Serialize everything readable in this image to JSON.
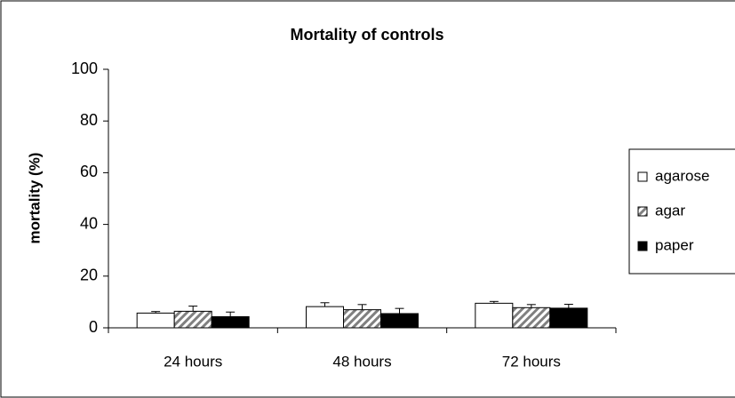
{
  "chart_data": {
    "type": "bar",
    "title": "Mortality of controls",
    "ylabel": "mortality (%)",
    "categories": [
      "24 hours",
      "48 hours",
      "72 hours"
    ],
    "series": [
      {
        "name": "agarose",
        "color": "#ffffff",
        "values": [
          5.7,
          8.2,
          9.5
        ],
        "errors": [
          0.6,
          1.5,
          0.7
        ]
      },
      {
        "name": "agar",
        "color": "#808080",
        "pattern": "hatch",
        "values": [
          6.4,
          7.0,
          7.8
        ],
        "errors": [
          2.0,
          2.0,
          1.2
        ]
      },
      {
        "name": "paper",
        "color": "#000000",
        "values": [
          4.3,
          5.5,
          7.6
        ],
        "errors": [
          1.8,
          2.0,
          1.5
        ]
      }
    ],
    "ylim": [
      0,
      100
    ],
    "yticks": [
      0,
      20,
      40,
      60,
      80,
      100
    ]
  }
}
